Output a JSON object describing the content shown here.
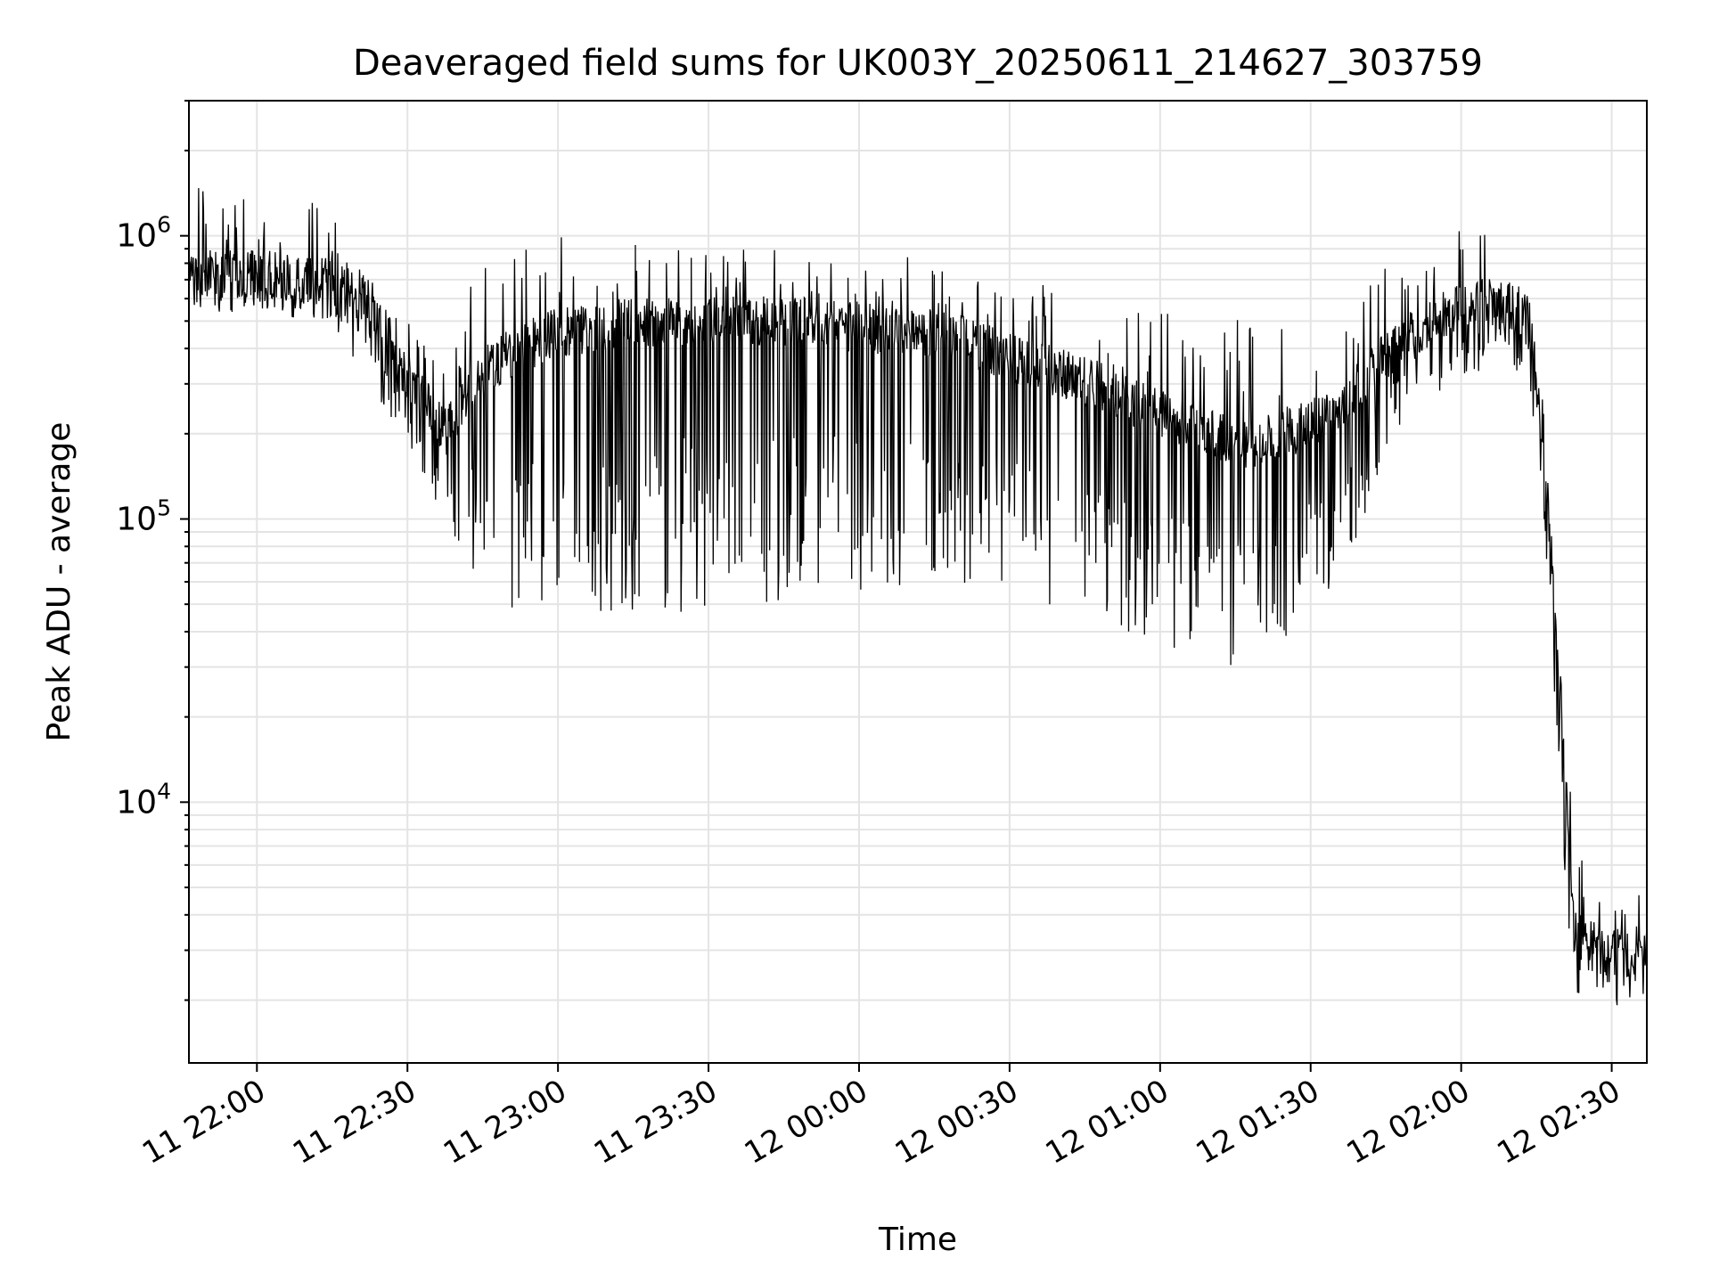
{
  "chart_data": {
    "type": "line",
    "title": "Deaveraged field sums for UK003Y_20250611_214627_303759",
    "xlabel": "Time",
    "ylabel": "Peak ADU - average",
    "y_scale": "log",
    "grid": true,
    "legend": "none",
    "xlim": [
      "2025-06-11 21:46:27",
      "2025-06-12 02:37:00"
    ],
    "ylim": [
      1200,
      3000000
    ],
    "x_tick_labels": [
      "11 22:00",
      "11 22:30",
      "11 23:00",
      "11 23:30",
      "12 00:00",
      "12 00:30",
      "12 01:00",
      "12 01:30",
      "12 02:00",
      "12 02:30"
    ],
    "x_ticks": [
      "2025-06-11 22:00",
      "2025-06-11 22:30",
      "2025-06-11 23:00",
      "2025-06-11 23:30",
      "2025-06-12 00:00",
      "2025-06-12 00:30",
      "2025-06-12 01:00",
      "2025-06-12 01:30",
      "2025-06-12 02:00",
      "2025-06-12 02:30"
    ],
    "y_ticks": [
      {
        "value": 10000,
        "base": "10",
        "exp": "4"
      },
      {
        "value": 100000,
        "base": "10",
        "exp": "5"
      },
      {
        "value": 1000000,
        "base": "10",
        "exp": "6"
      }
    ],
    "series": [
      {
        "color": "#000000",
        "profile_hours_since_start": [
          0,
          0.45,
          0.6,
          0.7,
          0.85,
          1.0,
          1.2,
          1.5,
          2.0,
          2.5,
          3.0,
          3.3,
          3.5,
          3.8,
          4.0,
          4.2,
          4.35,
          4.45,
          4.5,
          4.55,
          4.6,
          4.68,
          4.85
        ],
        "profile_median": [
          750000,
          700000,
          600000,
          350000,
          200000,
          350000,
          450000,
          500000,
          500000,
          450000,
          300000,
          220000,
          180000,
          230000,
          400000,
          550000,
          600000,
          500000,
          200000,
          30000,
          3500,
          3000,
          3000
        ],
        "profile_dip_min": [
          550000,
          500000,
          300000,
          200000,
          90000,
          50000,
          45000,
          45000,
          50000,
          60000,
          40000,
          30000,
          30000,
          50000,
          200000,
          300000,
          350000,
          300000,
          100000,
          10000,
          2000,
          1800,
          2000
        ],
        "profile_spike_max": [
          1500000,
          1300000,
          700000,
          500000,
          600000,
          900000,
          1000000,
          1000000,
          900000,
          850000,
          600000,
          550000,
          500000,
          600000,
          900000,
          1100000,
          1000000,
          700000,
          300000,
          50000,
          7000,
          5000,
          5000
        ]
      }
    ]
  }
}
